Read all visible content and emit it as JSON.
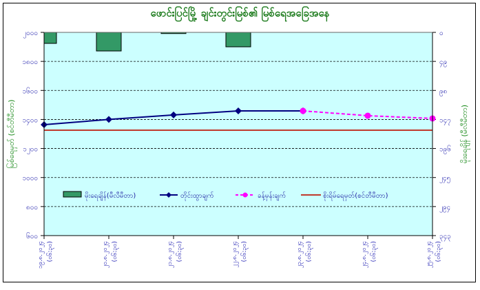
{
  "chart_data": {
    "type": "bar+line",
    "title": "ဖောင်းပြင်မြို့ ချင်းတွင်းမြစ်၏ မြစ်ရေအခြေအနေ",
    "ylabel_left": "မြစ်ရေမှတ် (စင်တီမီတာ)",
    "ylabel_right": "မိုးရေချိန် (မီလီမီတာ)",
    "categories": [
      {
        "date": "၁၉.၈.၂၀၂၄",
        "time": "(၀၆:၃၀)"
      },
      {
        "date": "၂၀.၈.၂၀၂၄",
        "time": "(၀၆:၃၀)"
      },
      {
        "date": "၂၁.၈.၂၀၂၄",
        "time": "(၀၆:၃၀)"
      },
      {
        "date": "၂၂.၈.၂၀၂၄",
        "time": "(၀၆:၃၀)"
      },
      {
        "date": "၂၃.၈.၂၀၂၄",
        "time": "(၀၆:၃၀)"
      },
      {
        "date": "၂၄.၈.၂၀၂၄",
        "time": "(၀၆:၃၀)"
      },
      {
        "date": "၂၅.၈.၂၀၂၄",
        "time": "(၀၆:၃၀)"
      }
    ],
    "left_axis": {
      "range": [
        600,
        2000
      ],
      "ticks": [
        2000,
        1800,
        1600,
        1400,
        1200,
        1000,
        800,
        600
      ],
      "tick_labels": [
        "၂၀၀၀",
        "၁၈၀၀",
        "၁၆၀၀",
        "၁၄၀၀",
        "၁၂၀၀",
        "၁၀၀၀",
        "၈၀၀",
        "၆၀၀"
      ]
    },
    "right_axis": {
      "range": [
        0,
        343
      ],
      "reversed": true,
      "ticks": [
        0,
        49,
        98,
        147,
        196,
        245,
        294,
        343
      ],
      "tick_labels": [
        "၀",
        "၄၉",
        "၉၈",
        "၁၄၇",
        "၁၉၆",
        "၂၄၅",
        "၂၉၄",
        "၃၄၃"
      ]
    },
    "grid": "horizontal-dashed",
    "legend_position": "bottom-inside",
    "series": [
      {
        "name": "မိုးရေချိန်(မီလီမီတာ)",
        "type": "bar",
        "axis": "right",
        "color": "#339966",
        "values": [
          18.6,
          31.4,
          2,
          24.4,
          null,
          null,
          null
        ]
      },
      {
        "name": "တိုင်းထွာချက်",
        "type": "line",
        "axis": "left",
        "color": "#000080",
        "values": [
          1364,
          1400,
          1431,
          1459,
          1459,
          null,
          null
        ]
      },
      {
        "name": "ခန့်မှန်းချက်",
        "type": "line-dashed",
        "axis": "left",
        "color": "#ff00ff",
        "values": [
          null,
          null,
          null,
          null,
          1459,
          1426,
          1407
        ]
      },
      {
        "name": "စိုးရိမ်ရေမှတ်(စင်တီမီတာ)",
        "type": "hline",
        "axis": "left",
        "color": "#c0392b",
        "value": 1326
      }
    ]
  }
}
